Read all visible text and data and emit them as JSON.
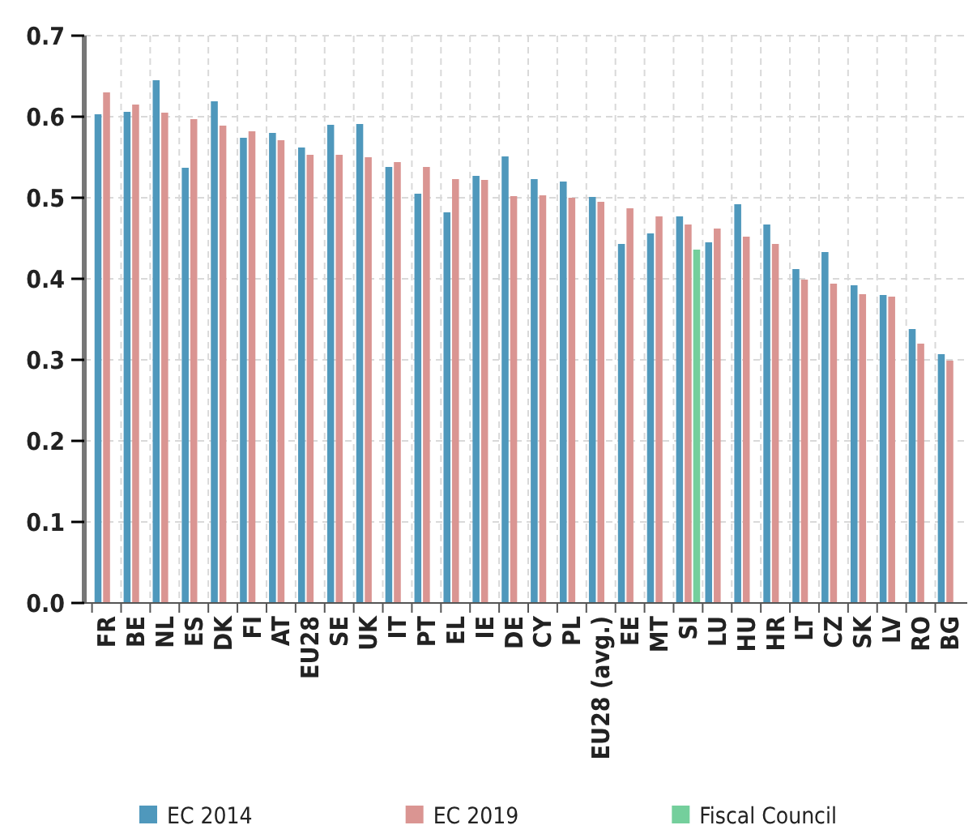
{
  "chart_data": {
    "type": "bar",
    "categories": [
      "FR",
      "BE",
      "NL",
      "ES",
      "DK",
      "FI",
      "AT",
      "EU28",
      "SE",
      "UK",
      "IT",
      "PT",
      "EL",
      "IE",
      "DE",
      "CY",
      "PL",
      "EU28 (avg.)",
      "EE",
      "MT",
      "SI",
      "LU",
      "HU",
      "HR",
      "LT",
      "CZ",
      "SK",
      "LV",
      "RO",
      "BG"
    ],
    "series": [
      {
        "name": "EC 2014",
        "color": "#4f98bc",
        "values": [
          0.603,
          0.606,
          0.645,
          0.537,
          0.619,
          0.574,
          0.58,
          0.562,
          0.59,
          0.591,
          0.538,
          0.505,
          0.482,
          0.527,
          0.551,
          0.523,
          0.52,
          0.501,
          0.443,
          0.456,
          0.477,
          0.445,
          0.492,
          0.467,
          0.412,
          0.433,
          0.392,
          0.38,
          0.338,
          0.307
        ]
      },
      {
        "name": "EC 2019",
        "color": "#da9592",
        "values": [
          0.63,
          0.615,
          0.605,
          0.597,
          0.589,
          0.582,
          0.571,
          0.553,
          0.553,
          0.55,
          0.544,
          0.538,
          0.523,
          0.522,
          0.502,
          0.503,
          0.5,
          0.495,
          0.487,
          0.477,
          0.467,
          0.462,
          0.452,
          0.443,
          0.399,
          0.394,
          0.381,
          0.378,
          0.32,
          0.299
        ]
      },
      {
        "name": "Fiscal Council",
        "color": "#74cf9c",
        "values": [
          null,
          null,
          null,
          null,
          null,
          null,
          null,
          null,
          null,
          null,
          null,
          null,
          null,
          null,
          null,
          null,
          null,
          null,
          null,
          null,
          0.436,
          null,
          null,
          null,
          null,
          null,
          null,
          null,
          null,
          null
        ]
      }
    ],
    "ylim": [
      0,
      0.7
    ],
    "yticks": [
      {
        "value": 0,
        "label": "0.0"
      },
      {
        "value": 0.1,
        "label": "0.1"
      },
      {
        "value": 0.2,
        "label": "0.2"
      },
      {
        "value": 0.3,
        "label": "0.3"
      },
      {
        "value": 0.4,
        "label": "0.4"
      },
      {
        "value": 0.5,
        "label": "0.5"
      },
      {
        "value": 0.6,
        "label": "0.6"
      },
      {
        "value": 0.7,
        "label": "0.7"
      }
    ],
    "grid": true,
    "legend": "bottom"
  }
}
